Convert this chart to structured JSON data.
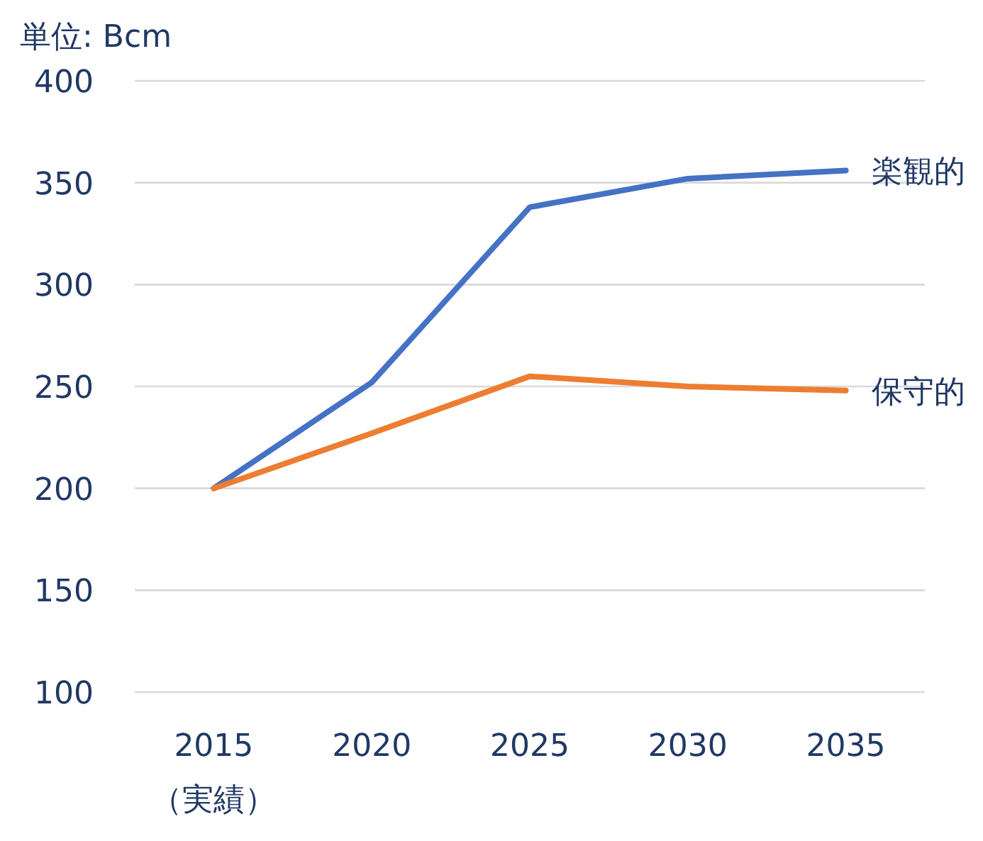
{
  "chart_data": {
    "type": "line",
    "ylabel": "単位: Bcm",
    "categories": [
      "2015（実績）",
      "2020",
      "2025",
      "2030",
      "2035"
    ],
    "series": [
      {
        "name": "楽観的",
        "color": "#4472c4",
        "values": [
          200,
          252,
          338,
          352,
          356
        ]
      },
      {
        "name": "保守的",
        "color": "#ed7d31",
        "values": [
          200,
          227,
          255,
          250,
          248
        ]
      }
    ],
    "ylim": [
      100,
      400
    ],
    "yticks": [
      100,
      150,
      200,
      250,
      300,
      350,
      400
    ],
    "grid": "y"
  }
}
